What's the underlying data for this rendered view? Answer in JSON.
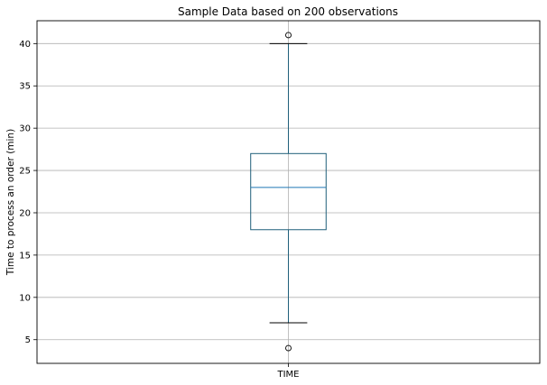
{
  "chart_data": {
    "type": "box",
    "title": "Sample Data based on 200 observations",
    "xlabel": "",
    "ylabel": "Time to process an order (min)",
    "categories": [
      "TIME"
    ],
    "ylim": [
      2.2,
      42.7
    ],
    "yticks": [
      5,
      10,
      15,
      20,
      25,
      30,
      35,
      40
    ],
    "grid": true,
    "boxes": [
      {
        "category": "TIME",
        "whisker_low": 7,
        "q1": 18,
        "median": 23,
        "q3": 27,
        "whisker_high": 40,
        "outliers": [
          4,
          41
        ]
      }
    ],
    "colors": {
      "box": "#1f5f7a",
      "median": "#1f77b4",
      "whisker": "#1f5f7a",
      "cap": "#000000",
      "grid": "#b0b0b0",
      "axes": "#000000"
    }
  }
}
